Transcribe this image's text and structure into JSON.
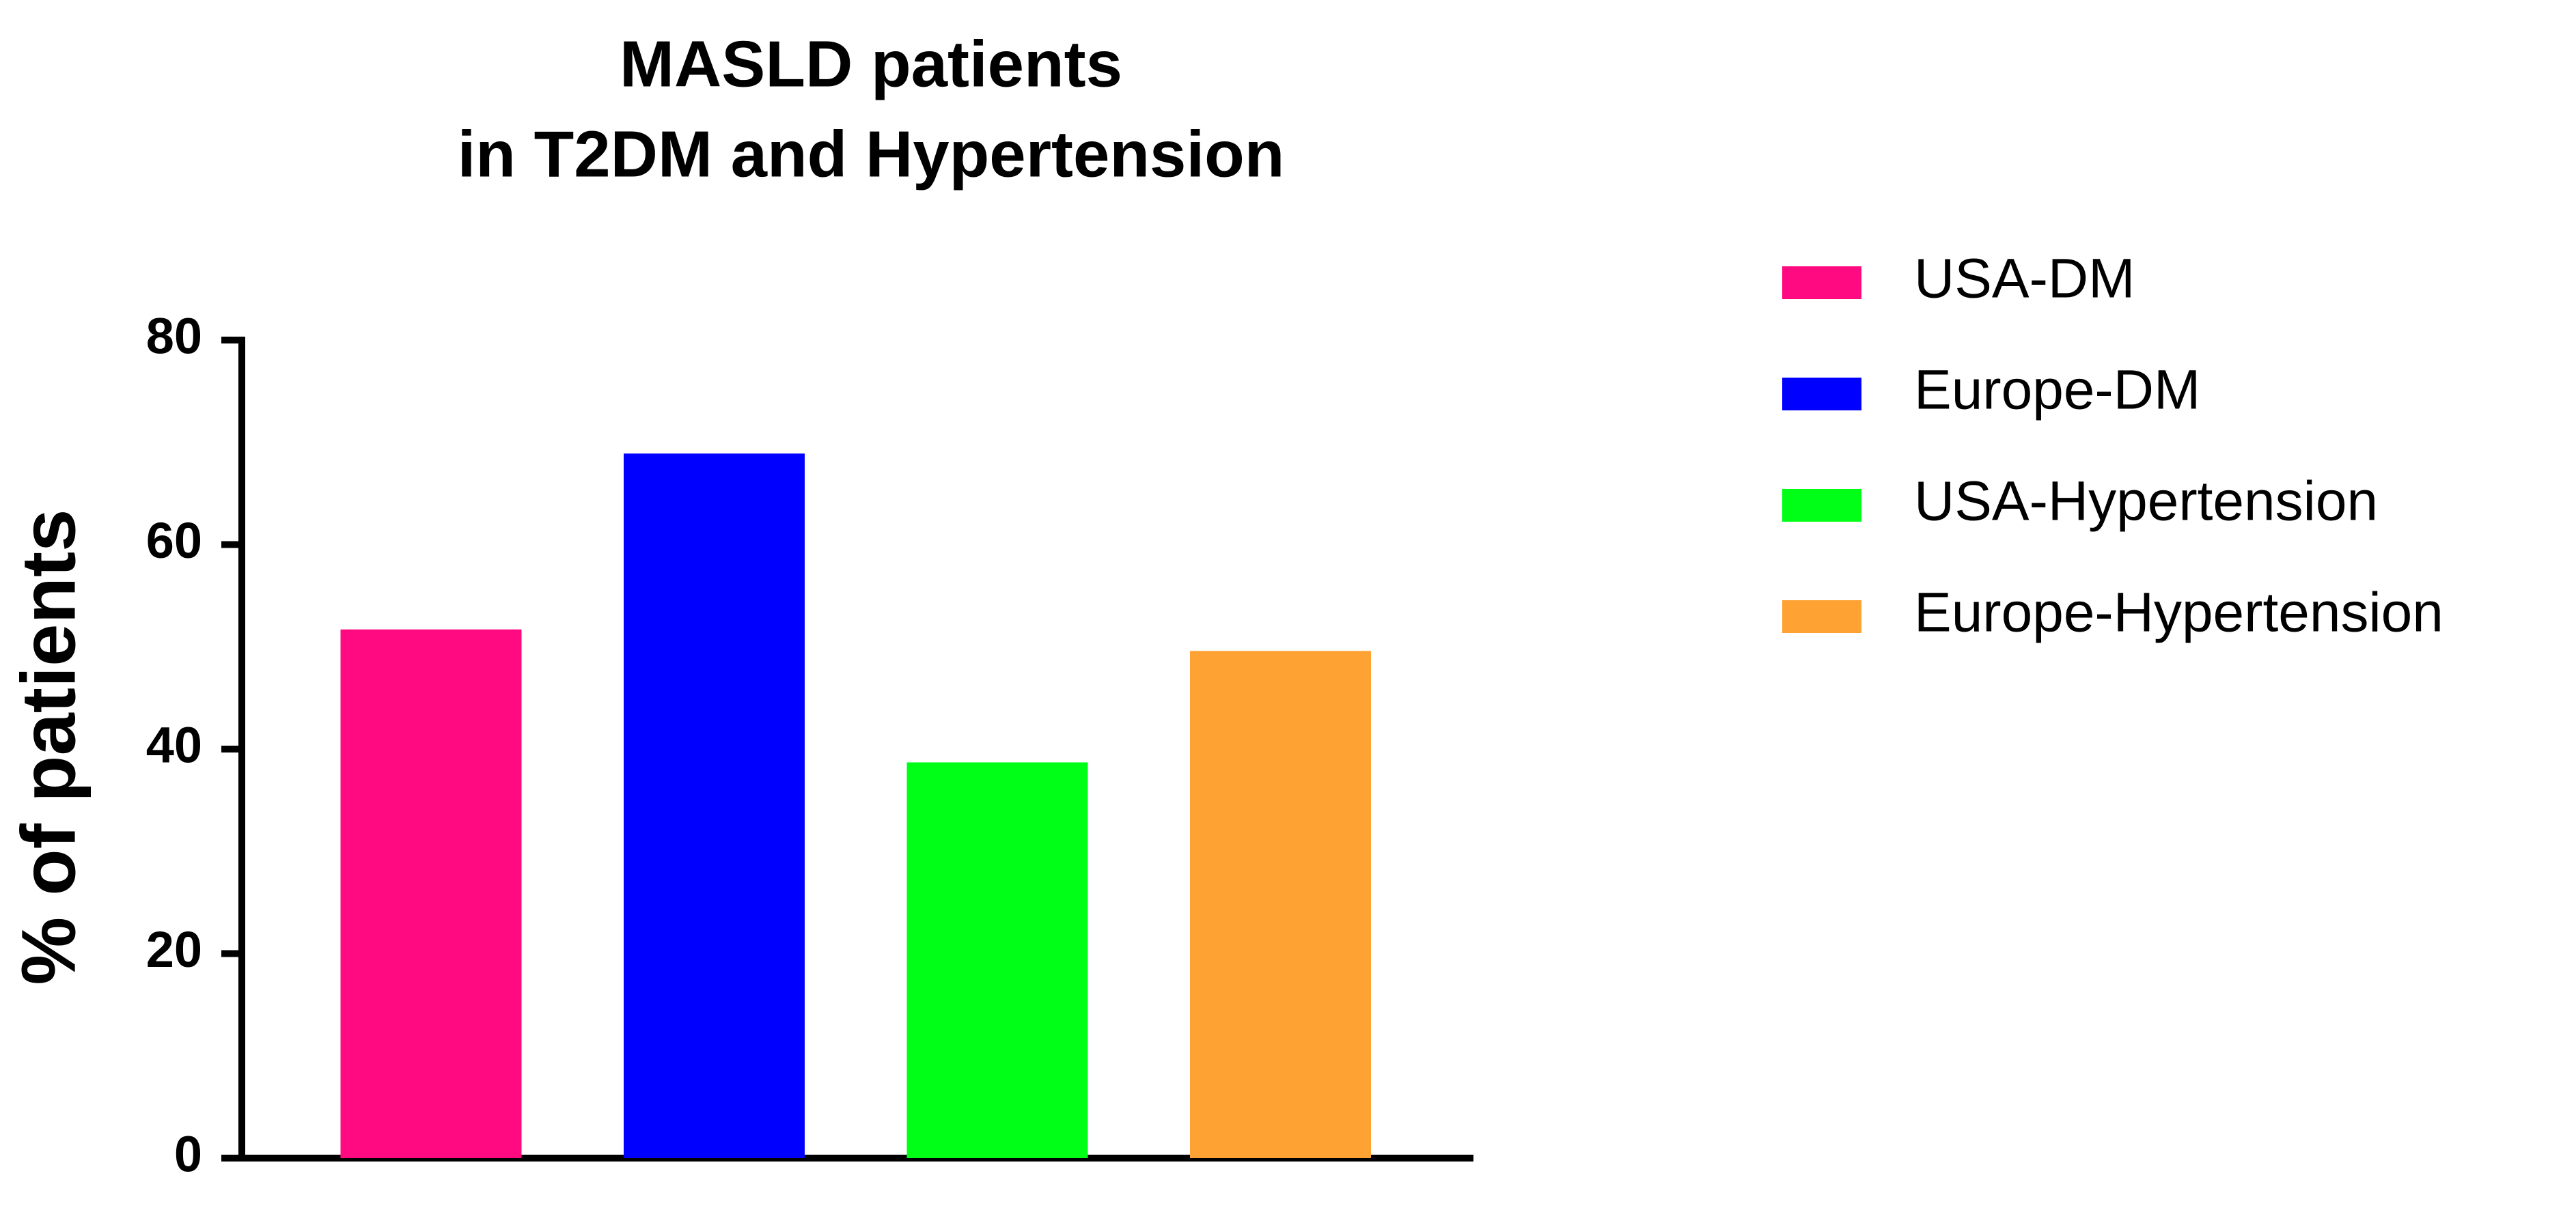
{
  "chart_data": {
    "type": "bar",
    "title": [
      "MASLD patients",
      "in T2DM and Hypertension"
    ],
    "y_label": "% of patients",
    "series": [
      {
        "name": "USA-DM",
        "color": "#ff0a80",
        "values": [
          51.7
        ]
      },
      {
        "name": "Europe-DM",
        "color": "#0000ff",
        "values": [
          68.9
        ]
      },
      {
        "name": "USA-Hypertension",
        "color": "#00ff17",
        "values": [
          38.7
        ]
      },
      {
        "name": "Europe-Hypertension",
        "color": "#ffa234",
        "values": [
          49.6
        ]
      }
    ],
    "ylim": [
      0,
      80
    ],
    "yticks": [
      0,
      20,
      40,
      60,
      80
    ],
    "grid": false,
    "legend": "right"
  }
}
